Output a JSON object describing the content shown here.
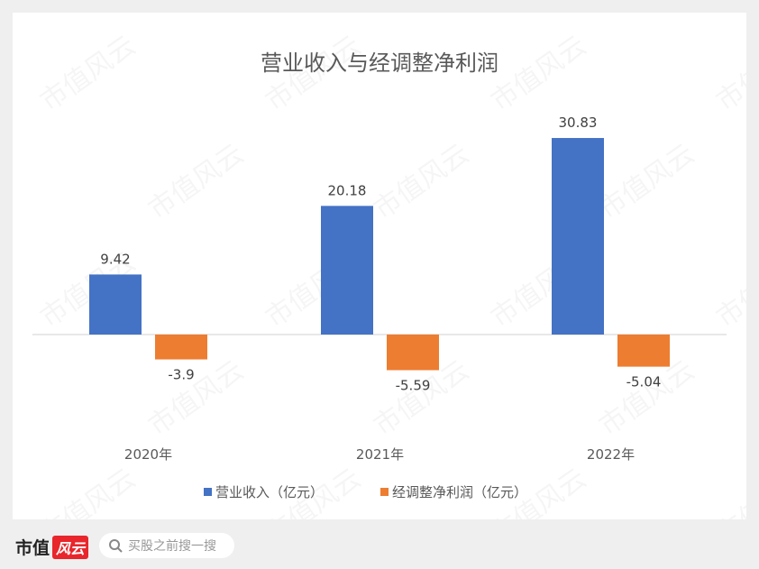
{
  "chart_data": {
    "type": "bar",
    "title": "营业收入与经调整净利润",
    "categories": [
      "2020年",
      "2021年",
      "2022年"
    ],
    "series": [
      {
        "name": "营业收入（亿元）",
        "values": [
          9.42,
          20.18,
          30.83
        ],
        "color": "#4472c4"
      },
      {
        "name": "经调整净利润（亿元）",
        "values": [
          -3.9,
          -5.59,
          -5.04
        ],
        "color": "#ed7d31"
      }
    ],
    "data_labels": [
      [
        "9.42",
        "20.18",
        "30.83"
      ],
      [
        "-3.9",
        "-5.59",
        "-5.04"
      ]
    ],
    "legend": "bottom",
    "grid": false
  },
  "watermark": "市值风云",
  "footer": {
    "logo_text": "市值",
    "logo_badge": "风云",
    "search_placeholder": "买股之前搜一搜",
    "search_icon": "search-icon"
  }
}
